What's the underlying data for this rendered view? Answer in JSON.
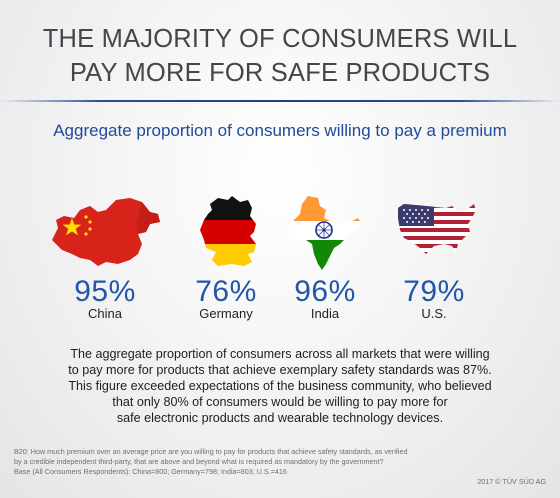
{
  "title": {
    "line1": "THE MAJORITY OF CONSUMERS WILL",
    "line2": "PAY MORE FOR SAFE PRODUCTS"
  },
  "subtitle": "Aggregate proportion of consumers willing to pay a premium",
  "countries": [
    {
      "name": "China",
      "percent": "95%",
      "icon": "china-flag-map-icon"
    },
    {
      "name": "Germany",
      "percent": "76%",
      "icon": "germany-flag-map-icon"
    },
    {
      "name": "India",
      "percent": "96%",
      "icon": "india-flag-map-icon"
    },
    {
      "name": "U.S.",
      "percent": "79%",
      "icon": "usa-flag-map-icon"
    }
  ],
  "body": {
    "line1": "The aggregate proportion of consumers across all markets that were willing",
    "line2": "to pay more for products that achieve exemplary safety standards was 87%.",
    "line3": "This figure exceeded expectations of the business community, who believed",
    "line4": "that only 80% of consumers would be willing to pay more for",
    "line5": "safe electronic products and wearable technology devices."
  },
  "footnote": {
    "line1": "B20: How much premium over an average price are you willing to pay for products that achieve safety standards, as verified",
    "line2": "by a credible independent third-party, that are above and beyond what is required as mandatory by the government?",
    "line3": "Base (All Consumers Respondents): China=800; Germany=798; India=803; U.S.=416"
  },
  "copyright": "2017 © TÜV SÜD AG",
  "colors": {
    "title": "#444649",
    "accent_blue": "#1f4a9a",
    "percent_blue": "#2456a8",
    "rule": "#1d3f86"
  }
}
